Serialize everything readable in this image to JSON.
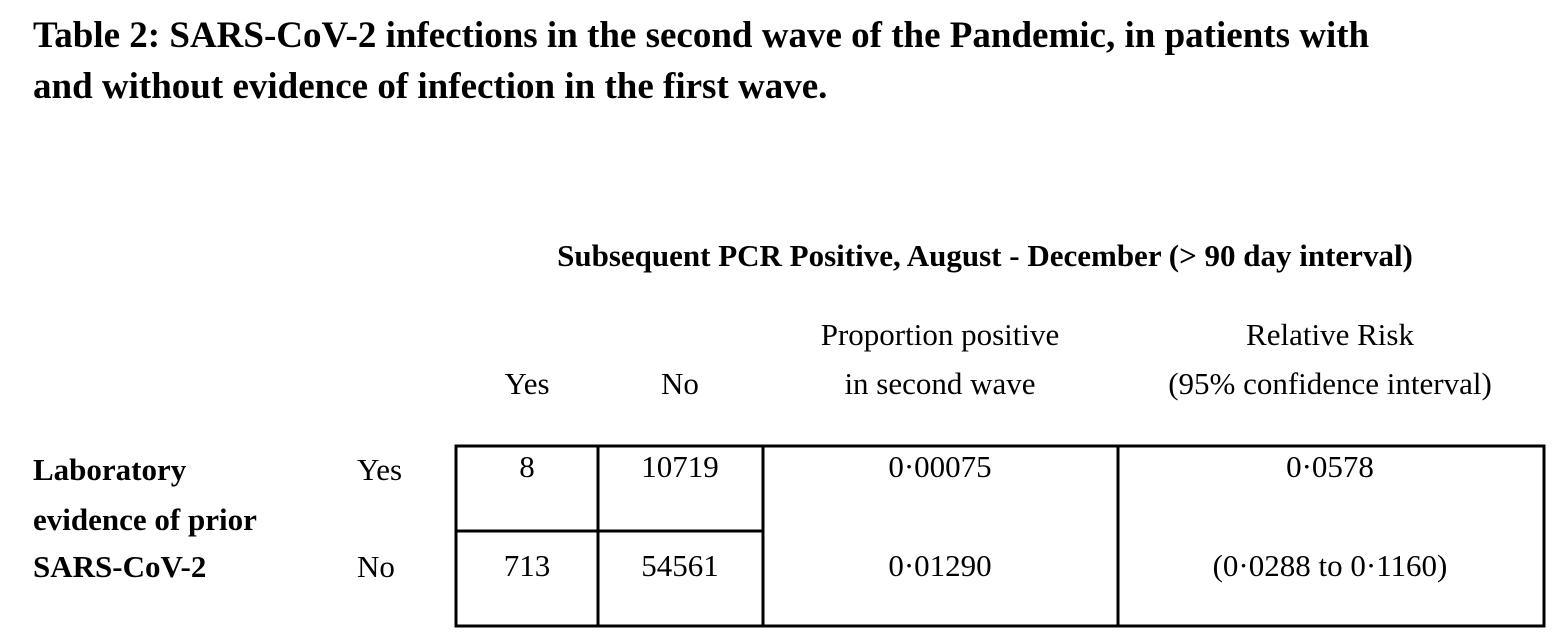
{
  "title": [
    "Table 2:  SARS-CoV-2 infections in the second wave of the Pandemic, in patients with",
    "and without evidence of infection in the first wave."
  ],
  "subheader": "Subsequent PCR Positive,  August - December (> 90 day interval)",
  "columns": [
    [
      "Yes"
    ],
    [
      "No"
    ],
    [
      "Proportion positive",
      "in second wave"
    ],
    [
      "Relative Risk",
      "(95% confidence interval)"
    ]
  ],
  "row_header": [
    "Laboratory",
    "evidence of prior",
    "SARS-CoV-2"
  ],
  "rows": [
    {
      "label": "Yes",
      "cells": [
        8,
        10719,
        "0·00075",
        "0·0578"
      ]
    },
    {
      "label": "No",
      "cells": [
        713,
        54561,
        "0·01290",
        "(0·0288 to 0·1160)"
      ]
    }
  ]
}
